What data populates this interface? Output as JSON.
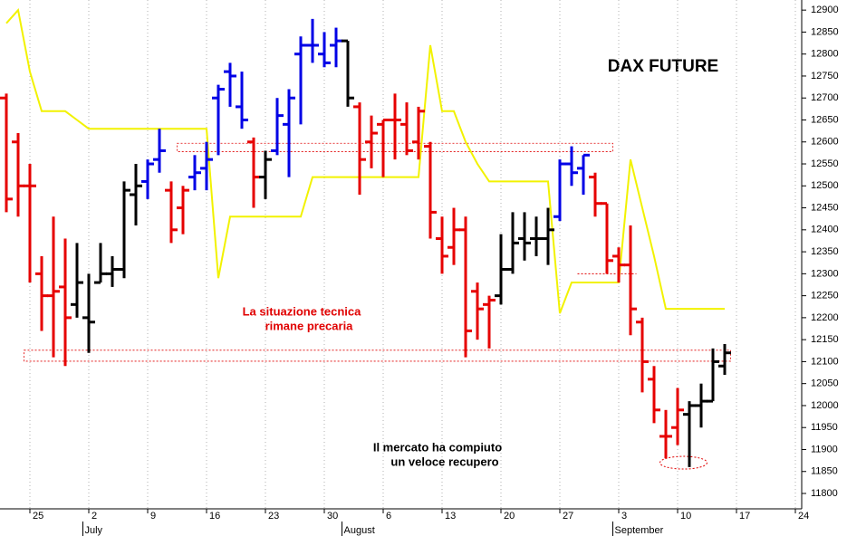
{
  "chart_data": {
    "type": "ohlc",
    "title": "DAX FUTURE",
    "annotations": [
      {
        "lines": [
          "La situazione tecnica",
          "rimane precaria"
        ],
        "color": "#e00000"
      },
      {
        "lines": [
          "Il mercato ha compiuto",
          "un veloce recupero"
        ],
        "color": "#000000"
      }
    ],
    "categories": [
      null,
      null,
      "25",
      null,
      null,
      null,
      null,
      "2",
      null,
      null,
      null,
      null,
      "9",
      null,
      null,
      null,
      null,
      "16",
      null,
      null,
      null,
      null,
      "23",
      null,
      null,
      null,
      null,
      "30",
      null,
      null,
      null,
      null,
      "6",
      null,
      null,
      null,
      null,
      "13",
      null,
      null,
      null,
      null,
      "20",
      null,
      null,
      null,
      null,
      "27",
      null,
      null,
      null,
      null,
      "3",
      null,
      null,
      null,
      null,
      "10",
      null,
      null,
      null,
      null,
      "17",
      null,
      null,
      null,
      null,
      "24"
    ],
    "months": [
      null,
      null,
      null,
      null,
      null,
      null,
      null,
      "July",
      null,
      null,
      null,
      null,
      null,
      null,
      null,
      null,
      null,
      null,
      null,
      null,
      null,
      null,
      null,
      null,
      null,
      null,
      null,
      null,
      null,
      "August",
      null,
      null,
      null,
      null,
      null,
      null,
      null,
      null,
      null,
      null,
      null,
      null,
      null,
      null,
      null,
      null,
      null,
      null,
      null,
      null,
      null,
      null,
      "September",
      null,
      null,
      null,
      null,
      null,
      null,
      null,
      null,
      null,
      null,
      null,
      null,
      null,
      null,
      null
    ],
    "open": [
      12700,
      12600,
      12500,
      12300,
      12250,
      12270,
      12230,
      12200,
      12280,
      12300,
      12310,
      12480,
      12510,
      12560,
      12490,
      12450,
      12520,
      12540,
      12700,
      12760,
      12680,
      12600,
      12520,
      12580,
      12640,
      12800,
      12820,
      12800,
      12820,
      12830,
      12680,
      12600,
      12640,
      12650,
      12640,
      12600,
      12590,
      12380,
      12360,
      12400,
      12260,
      12230,
      12250,
      12310,
      12380,
      12380,
      12380,
      12430,
      12550,
      12540,
      12520,
      12460,
      12340,
      12320,
      12190,
      12060,
      11930,
      11950,
      11980,
      12000,
      12010,
      12090,
      null,
      null,
      null,
      null,
      null,
      null
    ],
    "high": [
      12710,
      12620,
      12550,
      12340,
      12430,
      12380,
      12370,
      12300,
      12370,
      12340,
      12510,
      12550,
      12560,
      12630,
      12510,
      12500,
      12570,
      12600,
      12730,
      12780,
      12760,
      12610,
      12580,
      12700,
      12720,
      12840,
      12880,
      12850,
      12860,
      12830,
      12690,
      12660,
      12650,
      12710,
      12690,
      12680,
      12600,
      12430,
      12450,
      12430,
      12280,
      12250,
      12390,
      12440,
      12440,
      12430,
      12450,
      12560,
      12590,
      12570,
      12530,
      12460,
      12360,
      12410,
      12200,
      12090,
      11990,
      12040,
      12010,
      12050,
      12130,
      12140,
      null,
      null,
      null,
      null,
      null,
      null
    ],
    "low": [
      12440,
      12430,
      12280,
      12170,
      12110,
      12090,
      12200,
      12120,
      12280,
      12270,
      12290,
      12410,
      12470,
      12530,
      12370,
      12390,
      12490,
      12490,
      12570,
      12680,
      12630,
      12450,
      12470,
      12570,
      12520,
      12640,
      12780,
      12770,
      12770,
      12680,
      12480,
      12540,
      12520,
      12560,
      12570,
      12560,
      12380,
      12300,
      12320,
      12110,
      12150,
      12130,
      12230,
      12300,
      12330,
      12340,
      12320,
      12420,
      12500,
      12480,
      12430,
      12300,
      12280,
      12160,
      12030,
      11960,
      11880,
      11910,
      11860,
      11950,
      12010,
      12070,
      null,
      null,
      null,
      null,
      null,
      null
    ],
    "close": [
      12470,
      12500,
      12500,
      12250,
      12260,
      12200,
      12280,
      12190,
      12300,
      12310,
      12490,
      12500,
      12550,
      12580,
      12400,
      12490,
      12530,
      12560,
      12720,
      12750,
      12650,
      12520,
      12560,
      12660,
      12700,
      12820,
      12820,
      12780,
      12830,
      12700,
      12560,
      12620,
      12650,
      12650,
      12580,
      12670,
      12440,
      12340,
      12400,
      12170,
      12220,
      12240,
      12310,
      12370,
      12370,
      12380,
      12400,
      12550,
      12530,
      12570,
      12460,
      12330,
      12320,
      12220,
      12100,
      11990,
      11930,
      11990,
      12000,
      12010,
      12100,
      12120,
      null,
      null,
      null,
      null,
      null,
      null
    ],
    "colors": [
      "#e60000",
      "#e60000",
      "#e60000",
      "#e60000",
      "#e60000",
      "#e60000",
      "#000000",
      "#000000",
      "#000000",
      "#000000",
      "#000000",
      "#000000",
      "#0000e6",
      "#0000e6",
      "#e60000",
      "#e60000",
      "#0000e6",
      "#0000e6",
      "#0000e6",
      "#0000e6",
      "#0000e6",
      "#e60000",
      "#000000",
      "#0000e6",
      "#0000e6",
      "#0000e6",
      "#0000e6",
      "#0000e6",
      "#0000e6",
      "#000000",
      "#e60000",
      "#e60000",
      "#e60000",
      "#e60000",
      "#e60000",
      "#e60000",
      "#e60000",
      "#e60000",
      "#e60000",
      "#e60000",
      "#e60000",
      "#e60000",
      "#000000",
      "#000000",
      "#000000",
      "#000000",
      "#000000",
      "#0000e6",
      "#0000e6",
      "#0000e6",
      "#e60000",
      "#e60000",
      "#e60000",
      "#e60000",
      "#e60000",
      "#e60000",
      "#e60000",
      "#e60000",
      "#000000",
      "#000000",
      "#000000",
      "#000000",
      null,
      null,
      null,
      null,
      null,
      null
    ],
    "line": {
      "color": "#f2f200",
      "values": [
        12870,
        12900,
        12760,
        12670,
        12670,
        12670,
        12650,
        12630,
        12630,
        12630,
        12630,
        12630,
        12630,
        12630,
        12630,
        12630,
        12630,
        12630,
        12290,
        12430,
        12430,
        12430,
        12430,
        12430,
        12430,
        12430,
        12520,
        12520,
        12520,
        12520,
        12520,
        12520,
        12520,
        12520,
        12520,
        12520,
        12820,
        12670,
        12670,
        12600,
        12550,
        12510,
        12510,
        12510,
        12510,
        12510,
        12510,
        12210,
        12280,
        12280,
        12280,
        12280,
        12280,
        12560,
        12450,
        12340,
        12220,
        12220,
        12220,
        12220,
        12220,
        12220,
        null,
        null,
        null,
        null,
        null,
        null
      ]
    },
    "zones": [
      {
        "low": 12578,
        "high": 12597,
        "from": 15,
        "to": 51
      },
      {
        "low": 12101,
        "high": 12126,
        "from": 2,
        "to": 61
      }
    ],
    "levels": [
      {
        "value": 12300,
        "from": 49,
        "to": 53
      }
    ],
    "circles": [
      {
        "value": 11870,
        "from": 56,
        "to": 59
      }
    ],
    "ylim": [
      11765,
      12923
    ],
    "yticks": [
      11800,
      11850,
      11900,
      11950,
      12000,
      12050,
      12100,
      12150,
      12200,
      12250,
      12300,
      12350,
      12400,
      12450,
      12500,
      12550,
      12600,
      12650,
      12700,
      12750,
      12800,
      12850,
      12900
    ],
    "grid": true,
    "y_axis_side": "right"
  }
}
